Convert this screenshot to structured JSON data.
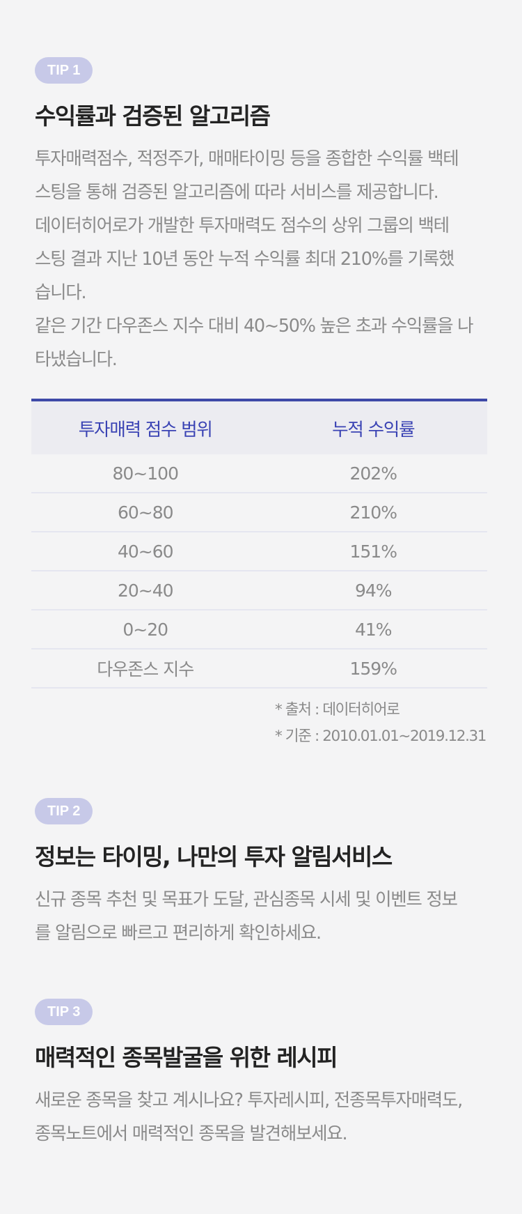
{
  "tip1": {
    "badge": "TIP 1",
    "title": "수익률과 검증된 알고리즘",
    "lines": [
      "투자매력점수, 적정주가, 매매타이밍 등을 종합한 수익률 백테",
      "스팅을 통해 검증된 알고리즘에 따라 서비스를 제공합니다.",
      "데이터히어로가 개발한 투자매력도 점수의 상위 그룹의 백테",
      "스팅 결과 지난 10년 동안 누적 수익률 최대 210%를 기록했",
      "습니다.",
      "같은 기간 다우존스 지수 대비 40~50% 높은 초과 수익률을 나",
      "타냈습니다."
    ]
  },
  "table": {
    "headers": [
      "투자매력 점수 범위",
      "누적 수익률"
    ],
    "rows": [
      [
        "80~100",
        "202%"
      ],
      [
        "60~80",
        "210%"
      ],
      [
        "40~60",
        "151%"
      ],
      [
        "20~40",
        "94%"
      ],
      [
        "0~20",
        "41%"
      ],
      [
        "다우존스 지수",
        "159%"
      ]
    ]
  },
  "notes": {
    "source": "* 출처 : 데이터히어로",
    "period": "* 기준 : 2010.01.01~2019.12.31"
  },
  "tip2": {
    "badge": "TIP 2",
    "title": "정보는 타이밍, 나만의 투자 알림서비스",
    "lines": [
      "신규 종목 추천 및 목표가 도달, 관심종목 시세 및 이벤트 정보",
      "를 알림으로 빠르고 편리하게 확인하세요."
    ]
  },
  "tip3": {
    "badge": "TIP 3",
    "title": "매력적인 종목발굴을 위한 레시피",
    "lines": [
      "새로운 종목을 찾고 계시나요? 투자레시피, 전종목투자매력도,",
      "종목노트에서 매력적인 종목을 발견해보세요."
    ]
  },
  "colors": {
    "badge_bg": "#c7c9e8",
    "accent": "#3e49a8",
    "table_header_text": "#3a43b4",
    "body_text": "#8a8a8a",
    "background": "#f4f4f5"
  }
}
